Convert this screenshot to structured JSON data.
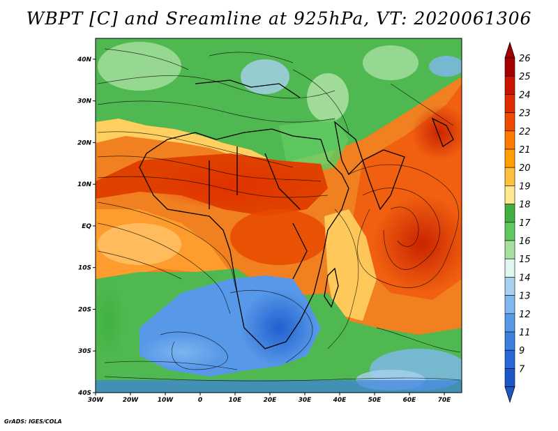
{
  "title": "WBPT [C] and Sreamline at 925hPa, VT: 2020061306",
  "credit": "GrADS: IGES/COLA",
  "map": {
    "lat_labels": [
      "40N",
      "30N",
      "20N",
      "10N",
      "EQ",
      "10S",
      "20S",
      "30S",
      "40S"
    ],
    "lon_labels": [
      "30W",
      "20W",
      "10W",
      "0",
      "10E",
      "20E",
      "30E",
      "40E",
      "50E",
      "60E",
      "70E"
    ],
    "extent": {
      "lon_min": -30,
      "lon_max": 75,
      "lat_min": -40,
      "lat_max": 45
    }
  },
  "colorbar": {
    "labels": [
      "26",
      "25",
      "24",
      "23",
      "22",
      "21",
      "20",
      "19",
      "18",
      "17",
      "16",
      "15",
      "14",
      "13",
      "12",
      "11",
      "9",
      "7"
    ],
    "colors": [
      "#a50000",
      "#c81400",
      "#e02c00",
      "#f04a00",
      "#ff7a00",
      "#ffa000",
      "#ffc040",
      "#ffe890",
      "#40b040",
      "#60c860",
      "#a8e0a0",
      "#e0f8f0",
      "#a8d0f0",
      "#80b8f0",
      "#5898e8",
      "#3c80e0",
      "#2868d8",
      "#1e58c8"
    ],
    "top_arrow_color": "#a50000",
    "bottom_arrow_color": "#1e58c8"
  }
}
